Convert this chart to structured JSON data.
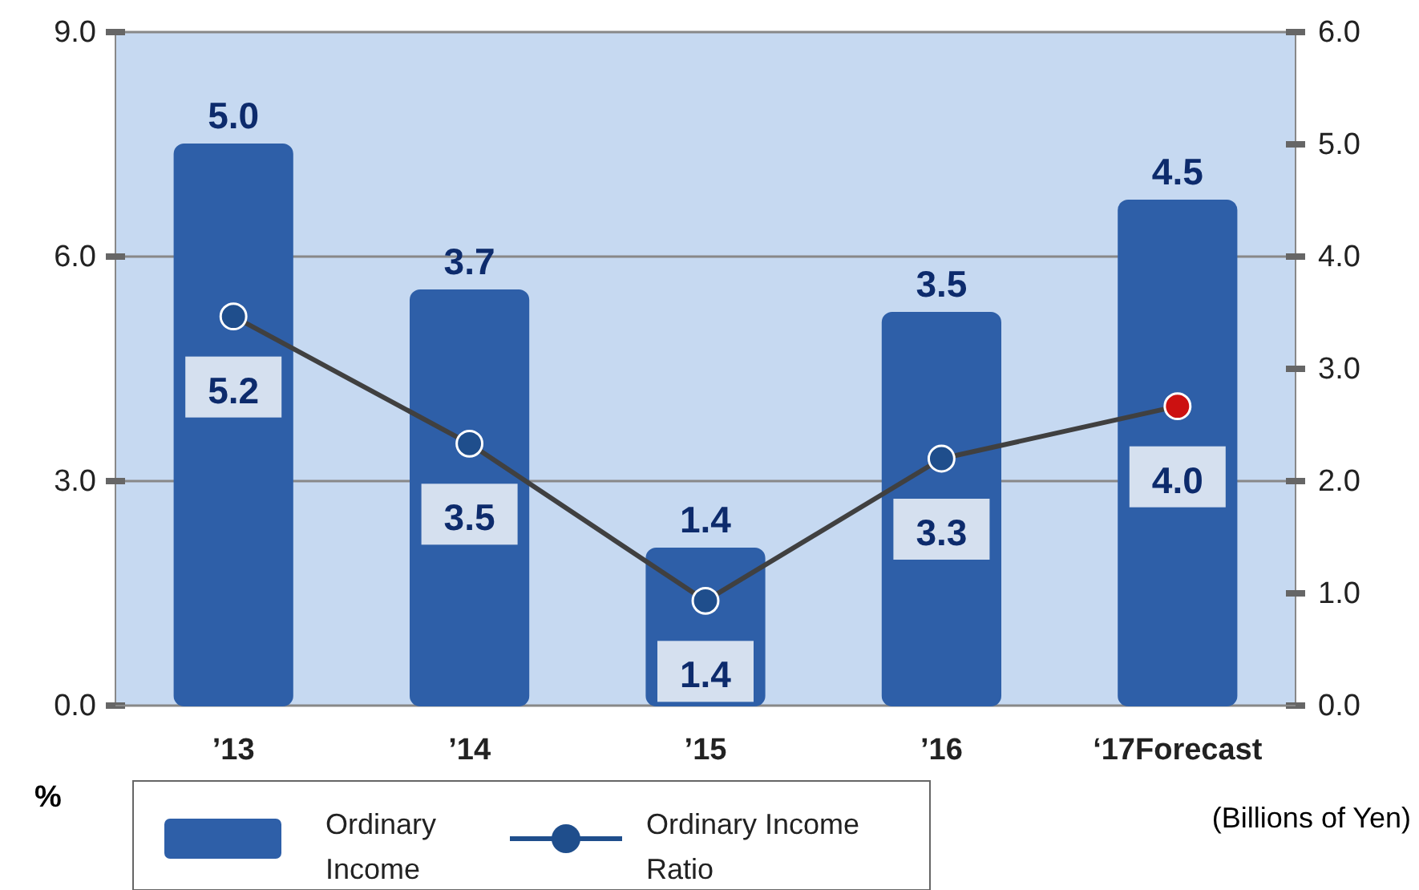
{
  "chart_data": {
    "type": "bar",
    "categories": [
      "’13",
      "’14",
      "’15",
      "’16",
      "‘17Forecast"
    ],
    "ylabel": "%",
    "y2label": "(Billions of Yen)",
    "ylim": [
      0,
      9
    ],
    "yticks": [
      {
        "value": 0,
        "label": "0.0"
      },
      {
        "value": 3,
        "label": "3.0"
      },
      {
        "value": 6,
        "label": "6.0"
      },
      {
        "value": 9,
        "label": "9.0"
      }
    ],
    "y2lim": [
      0,
      6
    ],
    "y2ticks": [
      {
        "value": 0,
        "label": "0.0"
      },
      {
        "value": 1,
        "label": "1.0"
      },
      {
        "value": 2,
        "label": "2.0"
      },
      {
        "value": 3,
        "label": "3.0"
      },
      {
        "value": 4,
        "label": "4.0"
      },
      {
        "value": 5,
        "label": "5.0"
      },
      {
        "value": 6,
        "label": "6.0"
      }
    ],
    "grid": "y",
    "legend": "bottom",
    "marker": "circle",
    "series": [
      {
        "name": "Ordinary Income",
        "axis": "y2",
        "color": "#2e5fa8",
        "values": [
          5.0,
          3.7,
          1.4,
          3.5,
          4.5
        ],
        "value_labels": [
          "5.0",
          "3.7",
          "1.4",
          "3.5",
          "4.5"
        ]
      },
      {
        "name": "Ordinary Income Ratio",
        "type": "line",
        "axis": "y",
        "color": "#404040",
        "colors": [
          "#1f4e8c",
          "#1f4e8c",
          "#1f4e8c",
          "#1f4e8c",
          "#cc1111"
        ],
        "values": [
          5.2,
          3.5,
          1.4,
          3.3,
          4.0
        ],
        "value_labels": [
          "5.2",
          "3.5",
          "1.4",
          "3.3",
          "4.0"
        ]
      }
    ]
  }
}
